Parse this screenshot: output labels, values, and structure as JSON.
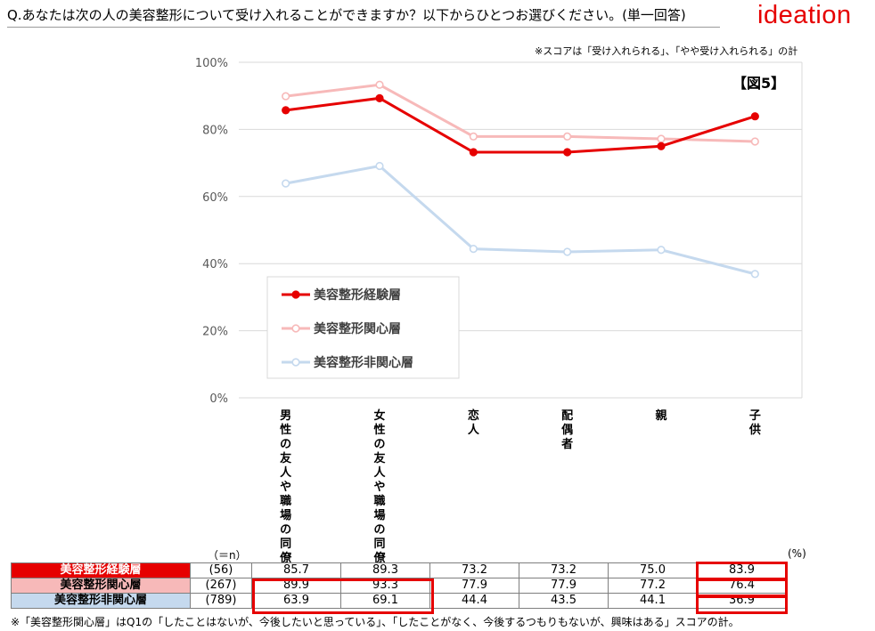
{
  "header": {
    "question": "Q.あなたは次の人の美容整形について受け入れることができますか？以下からひとつお選びください。(単一回答)",
    "brand": "ideation",
    "score_note": "※スコアは「受け入れられる」、「やや受け入れられる」の計",
    "figure_label": "【図5】"
  },
  "colors": {
    "experienced": "#e60000",
    "interested": "#f7b9b9",
    "uninterested": "#c5d9ee",
    "brand": "#e60000"
  },
  "chart_data": {
    "type": "line",
    "categories": [
      "男性の友人や職場の同僚",
      "女性の友人や職場の同僚",
      "恋人",
      "配偶者",
      "親",
      "子供"
    ],
    "yticks": [
      "100%",
      "80%",
      "60%",
      "40%",
      "20%",
      "0%"
    ],
    "ylim": [
      0,
      100
    ],
    "grid": true,
    "legend_position": "bottom-left",
    "series": [
      {
        "name": "美容整形経験層",
        "color": "#e60000",
        "marker": "filled",
        "values": [
          85.7,
          89.3,
          73.2,
          73.2,
          75.0,
          83.9
        ]
      },
      {
        "name": "美容整形関心層",
        "color": "#f7b9b9",
        "marker": "hollow",
        "values": [
          89.9,
          93.3,
          77.9,
          77.9,
          77.2,
          76.4
        ]
      },
      {
        "name": "美容整形非関心層",
        "color": "#c5d9ee",
        "marker": "hollow",
        "values": [
          63.9,
          69.1,
          44.4,
          43.5,
          44.1,
          36.9
        ]
      }
    ]
  },
  "table": {
    "n_header": "（＝n）",
    "unit": "(%)",
    "rows": [
      {
        "label": "美容整形経験層",
        "n": "(56)",
        "values": [
          "85.7",
          "89.3",
          "73.2",
          "73.2",
          "75.0",
          "83.9"
        ]
      },
      {
        "label": "美容整形関心層",
        "n": "(267)",
        "values": [
          "89.9",
          "93.3",
          "77.9",
          "77.9",
          "77.2",
          "76.4"
        ]
      },
      {
        "label": "美容整形非関心層",
        "n": "(789)",
        "values": [
          "63.9",
          "69.1",
          "44.4",
          "43.5",
          "44.1",
          "36.9"
        ]
      }
    ]
  },
  "footnote": "※「美容整形関心層」はQ1の「したことはないが、今後したいと思っている」、「したことがなく、今後するつもりもないが、興味はある」スコアの計。"
}
